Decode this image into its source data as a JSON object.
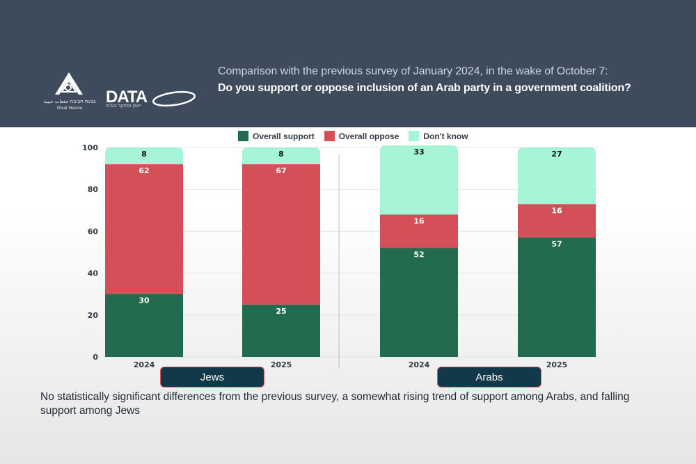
{
  "header": {
    "subtitle": "Comparison with the previous survey of January 2024, in the wake of October 7:",
    "title": "Do you support or oppose inclusion of an Arab party in a government coalition?",
    "logos": {
      "givat_haviva_hebrew": "גבעת חביבה جفعات حبيبة",
      "givat_haviva_name": "Givat Haviva",
      "data_wordmark": "DATA",
      "data_hebrew": "ייעוץ ומחקר בע\"מ"
    }
  },
  "colors": {
    "support": "#236b4e",
    "oppose": "#d44f58",
    "dont_know": "#a6f5d6",
    "header_bg": "#3d4b5c",
    "group_label_bg": "#12394a"
  },
  "chart_data": {
    "type": "bar",
    "stacked": true,
    "title": "Do you support or oppose inclusion of an Arab party in a government coalition?",
    "categories": [
      "2024",
      "2025",
      "2024",
      "2025"
    ],
    "groups": [
      {
        "name": "Jews",
        "categories": [
          "2024",
          "2025"
        ]
      },
      {
        "name": "Arabs",
        "categories": [
          "2024",
          "2025"
        ]
      }
    ],
    "series": [
      {
        "name": "Overall support",
        "values": [
          30,
          25,
          52,
          57
        ]
      },
      {
        "name": "Overall oppose",
        "values": [
          62,
          67,
          16,
          16
        ]
      },
      {
        "name": "Don't know",
        "values": [
          8,
          8,
          33,
          27
        ]
      }
    ],
    "xlabel": "",
    "ylabel": "",
    "ylim": [
      0,
      100
    ],
    "yticks": [
      "0",
      "20",
      "40",
      "60",
      "80",
      "100"
    ],
    "grid": true,
    "legend": "top-center"
  },
  "caption": "No statistically significant differences from the previous survey, a somewhat rising trend of support among Arabs, and falling support among Jews"
}
